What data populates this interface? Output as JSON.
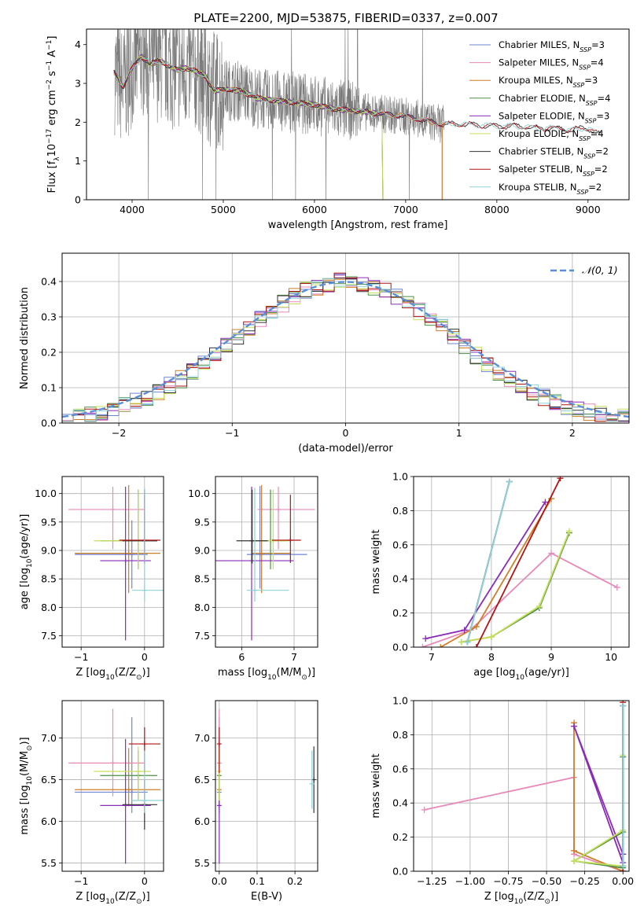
{
  "title": "PLATE=2200, MJD=53875, FIBERID=0337, z=0.007",
  "colors": {
    "Chabrier MILES": "#6f86d6",
    "Salpeter MILES": "#e889b8",
    "Kroupa MILES": "#cf7d26",
    "Chabrier ELODIE": "#4f8f45",
    "Salpeter ELODIE": "#8a2bb8",
    "Kroupa ELODIE": "#c6e05a",
    "Chabrier STELIB": "#333333",
    "Salpeter STELIB": "#b01515",
    "Kroupa STELIB": "#8fd3d8",
    "data": "#7a7a7a",
    "normal": "#5a8fd8"
  },
  "chart_data": [
    {
      "id": "spectrum",
      "type": "line",
      "xlabel": "wavelength [Angstrom, rest frame]",
      "ylabel": "Flux [f_λ10^-17 erg cm^-2 s^-1 A^-1]",
      "xlim": [
        3500,
        9450
      ],
      "ylim": [
        0,
        4.4
      ],
      "xticks": [
        4000,
        5000,
        6000,
        7000,
        8000,
        9000
      ],
      "yticks": [
        0,
        1,
        2,
        3,
        4
      ],
      "legend_position": "top-right",
      "legend": [
        {
          "label": "Chabrier MILES, N",
          "sub": "SSP",
          "suffix": "=3"
        },
        {
          "label": "Salpeter MILES, N",
          "sub": "SSP",
          "suffix": "=4"
        },
        {
          "label": "Kroupa MILES, N",
          "sub": "SSP",
          "suffix": "=3"
        },
        {
          "label": "Chabrier ELODIE, N",
          "sub": "SSP",
          "suffix": "=4"
        },
        {
          "label": "Salpeter ELODIE, N",
          "sub": "SSP",
          "suffix": "=3"
        },
        {
          "label": "Kroupa ELODIE, N",
          "sub": "SSP",
          "suffix": "=4"
        },
        {
          "label": "Chabrier STELIB, N",
          "sub": "SSP",
          "suffix": "=2"
        },
        {
          "label": "Salpeter STELIB, N",
          "sub": "SSP",
          "suffix": "=2"
        },
        {
          "label": "Kroupa STELIB, N",
          "sub": "SSP",
          "suffix": "=2"
        }
      ],
      "model_continuum": {
        "wavelength": [
          3800,
          3900,
          4000,
          4100,
          4200,
          4300,
          4400,
          4500,
          4600,
          4700,
          4800,
          4900,
          5000,
          5200,
          5400,
          5600,
          5800,
          6000,
          6200,
          6400,
          6600,
          6800,
          7000,
          7200,
          7400,
          7600,
          7800,
          8000,
          8200,
          8400,
          8600,
          8800,
          9000,
          9100
        ],
        "flux": [
          3.3,
          2.9,
          3.4,
          3.7,
          3.5,
          3.6,
          3.45,
          3.35,
          3.4,
          3.3,
          3.2,
          2.8,
          2.85,
          2.8,
          2.6,
          2.55,
          2.5,
          2.45,
          2.35,
          2.3,
          2.25,
          2.2,
          2.15,
          2.05,
          1.95,
          1.95,
          1.92,
          1.9,
          1.9,
          1.85,
          1.85,
          1.8,
          1.85,
          1.7
        ]
      }
    },
    {
      "id": "residuals",
      "type": "line",
      "xlabel": "(data-model)/error",
      "ylabel": "Normed distribution",
      "xlim": [
        -2.5,
        2.5
      ],
      "ylim": [
        0,
        0.48
      ],
      "xticks": [
        -2,
        -1,
        0,
        1,
        2
      ],
      "yticks": [
        0.0,
        0.1,
        0.2,
        0.3,
        0.4
      ],
      "legend_position": "top-right",
      "normal_label": "𝒩(0, 1)"
    },
    {
      "id": "age-vs-Z",
      "type": "scatter",
      "xlabel": "Z [log10(Z/Z⊙)]",
      "ylabel": "age  [log10(age/yr)]",
      "xlim": [
        -1.3,
        0.3
      ],
      "ylim": [
        7.3,
        10.3
      ],
      "xticks": [
        -1,
        0
      ],
      "yticks": [
        7.5,
        8.0,
        8.5,
        9.0,
        9.5,
        10.0
      ],
      "points": [
        {
          "model": "Chabrier MILES",
          "x": -0.2,
          "xerr": [
            0.9,
            0.25
          ],
          "y": 8.93,
          "yerr": [
            0.6,
            0.6
          ]
        },
        {
          "model": "Salpeter MILES",
          "x": -0.5,
          "xerr": [
            0.7,
            0.5
          ],
          "y": 9.72,
          "yerr": [
            0.7,
            0.4
          ]
        },
        {
          "model": "Kroupa MILES",
          "x": -0.25,
          "xerr": [
            0.85,
            0.5
          ],
          "y": 8.95,
          "yerr": [
            0.7,
            1.2
          ]
        },
        {
          "model": "Chabrier ELODIE",
          "x": -0.1,
          "xerr": [
            0.6,
            0.3
          ],
          "y": 9.17,
          "yerr": [
            0.5,
            0.9
          ]
        },
        {
          "model": "Salpeter ELODIE",
          "x": -0.3,
          "xerr": [
            0.4,
            0.4
          ],
          "y": 8.82,
          "yerr": [
            1.4,
            1.3
          ]
        },
        {
          "model": "Kroupa ELODIE",
          "x": -0.1,
          "xerr": [
            0.7,
            0.2
          ],
          "y": 9.17,
          "yerr": [
            0.5,
            0.9
          ]
        },
        {
          "model": "Chabrier STELIB",
          "x": 0.0,
          "xerr": [
            0.35,
            0.2
          ],
          "y": 9.17,
          "yerr": [
            0.4,
            0.9
          ]
        },
        {
          "model": "Salpeter STELIB",
          "x": 0.0,
          "xerr": [
            0.4,
            0.25
          ],
          "y": 9.18,
          "yerr": [
            0.4,
            0.8
          ]
        },
        {
          "model": "Kroupa STELIB",
          "x": 0.0,
          "xerr": [
            0.2,
            0.3
          ],
          "y": 8.3,
          "yerr": [
            0.2,
            1.8
          ]
        }
      ]
    },
    {
      "id": "age-vs-mass",
      "type": "scatter",
      "xlabel": "mass [log10(M/M⊙)]",
      "ylabel": "",
      "xlim": [
        5.5,
        7.45
      ],
      "ylim": [
        7.3,
        10.3
      ],
      "xticks": [
        6,
        7
      ],
      "yticks": [
        7.5,
        8.0,
        8.5,
        9.0,
        9.5,
        10.0
      ],
      "points": [
        {
          "model": "Chabrier MILES",
          "x": 6.35,
          "xerr": [
            0.25,
            0.9
          ],
          "y": 8.93,
          "yerr": [
            0.6,
            1.2
          ]
        },
        {
          "model": "Salpeter MILES",
          "x": 6.7,
          "xerr": [
            0.4,
            0.7
          ],
          "y": 9.72,
          "yerr": [
            0.7,
            0.4
          ]
        },
        {
          "model": "Kroupa MILES",
          "x": 6.38,
          "xerr": [
            0.2,
            0.55
          ],
          "y": 8.95,
          "yerr": [
            0.7,
            1.2
          ]
        },
        {
          "model": "Chabrier ELODIE",
          "x": 6.55,
          "xerr": [
            0.3,
            0.3
          ],
          "y": 9.17,
          "yerr": [
            0.5,
            0.9
          ]
        },
        {
          "model": "Salpeter ELODIE",
          "x": 6.19,
          "xerr": [
            0.7,
            0.8
          ],
          "y": 8.82,
          "yerr": [
            1.4,
            1.3
          ]
        },
        {
          "model": "Kroupa ELODIE",
          "x": 6.6,
          "xerr": [
            0.35,
            0.3
          ],
          "y": 9.17,
          "yerr": [
            0.5,
            0.9
          ]
        },
        {
          "model": "Chabrier STELIB",
          "x": 6.2,
          "xerr": [
            0.3,
            0.3
          ],
          "y": 9.17,
          "yerr": [
            0.4,
            0.9
          ]
        },
        {
          "model": "Salpeter STELIB",
          "x": 6.93,
          "xerr": [
            0.35,
            0.2
          ],
          "y": 9.18,
          "yerr": [
            0.4,
            0.8
          ]
        },
        {
          "model": "Kroupa STELIB",
          "x": 6.25,
          "xerr": [
            0.15,
            0.65
          ],
          "y": 8.3,
          "yerr": [
            0.2,
            1.8
          ]
        }
      ]
    },
    {
      "id": "weight-vs-age",
      "type": "line",
      "xlabel": "age  [log10(age/yr)]",
      "ylabel": "mass weight",
      "xlim": [
        6.7,
        10.3
      ],
      "ylim": [
        0,
        1
      ],
      "xticks": [
        7,
        8,
        9,
        10
      ],
      "yticks": [
        0.0,
        0.2,
        0.4,
        0.6,
        0.8,
        1.0
      ],
      "series": [
        {
          "model": "Chabrier MILES",
          "x": [
            7.6,
            7.65,
            8.3
          ],
          "y": [
            0.03,
            0.1,
            0.97
          ]
        },
        {
          "model": "Salpeter MILES",
          "x": [
            6.85,
            7.65,
            9.0,
            10.1
          ],
          "y": [
            0.0,
            0.1,
            0.55,
            0.35
          ]
        },
        {
          "model": "Kroupa MILES",
          "x": [
            7.15,
            7.75,
            9.0
          ],
          "y": [
            0.0,
            0.12,
            0.87
          ]
        },
        {
          "model": "Chabrier ELODIE",
          "x": [
            7.5,
            8.0,
            8.8,
            9.3
          ],
          "y": [
            0.03,
            0.06,
            0.23,
            0.67
          ]
        },
        {
          "model": "Salpeter ELODIE",
          "x": [
            6.9,
            7.55,
            8.9
          ],
          "y": [
            0.05,
            0.1,
            0.85
          ]
        },
        {
          "model": "Kroupa ELODIE",
          "x": [
            7.5,
            8.0,
            8.8,
            9.3
          ],
          "y": [
            0.03,
            0.06,
            0.24,
            0.68
          ]
        },
        {
          "model": "Chabrier STELIB",
          "x": [
            7.6,
            8.3
          ],
          "y": [
            0.03,
            0.97
          ]
        },
        {
          "model": "Salpeter STELIB",
          "x": [
            7.75,
            9.15
          ],
          "y": [
            0.0,
            0.99
          ]
        },
        {
          "model": "Kroupa STELIB",
          "x": [
            7.6,
            8.3
          ],
          "y": [
            0.03,
            0.97
          ]
        }
      ]
    },
    {
      "id": "mass-vs-Z",
      "type": "scatter",
      "xlabel": "Z [log10(Z/Z⊙)]",
      "ylabel": "mass [log10(M/M⊙)]",
      "xlim": [
        -1.3,
        0.3
      ],
      "ylim": [
        5.4,
        7.45
      ],
      "xticks": [
        -1,
        0
      ],
      "yticks": [
        5.5,
        6.0,
        6.5,
        7.0
      ],
      "points": [
        {
          "model": "Chabrier MILES",
          "x": -0.2,
          "xerr": [
            0.9,
            0.25
          ],
          "y": 6.35,
          "yerr": [
            0.25,
            0.9
          ]
        },
        {
          "model": "Salpeter MILES",
          "x": -0.5,
          "xerr": [
            0.7,
            0.5
          ],
          "y": 6.7,
          "yerr": [
            0.4,
            0.65
          ]
        },
        {
          "model": "Kroupa MILES",
          "x": -0.25,
          "xerr": [
            0.85,
            0.5
          ],
          "y": 6.38,
          "yerr": [
            0.2,
            0.5
          ]
        },
        {
          "model": "Chabrier ELODIE",
          "x": -0.1,
          "xerr": [
            0.6,
            0.3
          ],
          "y": 6.55,
          "yerr": [
            0.3,
            0.3
          ]
        },
        {
          "model": "Salpeter ELODIE",
          "x": -0.3,
          "xerr": [
            0.4,
            0.4
          ],
          "y": 6.19,
          "yerr": [
            0.7,
            0.8
          ]
        },
        {
          "model": "Kroupa ELODIE",
          "x": -0.1,
          "xerr": [
            0.7,
            0.2
          ],
          "y": 6.6,
          "yerr": [
            0.35,
            0.3
          ]
        },
        {
          "model": "Chabrier STELIB",
          "x": 0.0,
          "xerr": [
            0.35,
            0.2
          ],
          "y": 6.2,
          "yerr": [
            0.3,
            0.3
          ]
        },
        {
          "model": "Salpeter STELIB",
          "x": 0.0,
          "xerr": [
            0.25,
            0.25
          ],
          "y": 6.93,
          "yerr": [
            0.35,
            0.2
          ]
        },
        {
          "model": "Kroupa STELIB",
          "x": 0.0,
          "xerr": [
            0.2,
            0.3
          ],
          "y": 6.25,
          "yerr": [
            0.15,
            0.6
          ]
        }
      ]
    },
    {
      "id": "mass-vs-ebv",
      "type": "scatter",
      "xlabel": "E(B-V)",
      "ylabel": "",
      "xlim": [
        -0.01,
        0.26
      ],
      "ylim": [
        5.4,
        7.45
      ],
      "xticks": [
        0.0,
        0.1,
        0.2
      ],
      "yticks": [
        5.5,
        6.0,
        6.5,
        7.0
      ],
      "points": [
        {
          "model": "Chabrier MILES",
          "x": 0.0,
          "y": 6.35,
          "yerr": [
            0.25,
            0.9
          ]
        },
        {
          "model": "Salpeter MILES",
          "x": 0.0,
          "y": 6.7,
          "yerr": [
            0.4,
            0.65
          ]
        },
        {
          "model": "Kroupa MILES",
          "x": 0.0,
          "y": 6.38,
          "yerr": [
            0.2,
            0.5
          ]
        },
        {
          "model": "Chabrier ELODIE",
          "x": 0.0,
          "y": 6.55,
          "yerr": [
            0.3,
            0.3
          ]
        },
        {
          "model": "Salpeter ELODIE",
          "x": 0.0,
          "y": 6.19,
          "yerr": [
            0.7,
            0.8
          ]
        },
        {
          "model": "Kroupa ELODIE",
          "x": 0.0,
          "y": 6.6,
          "yerr": [
            0.35,
            0.3
          ]
        },
        {
          "model": "Chabrier STELIB",
          "x": 0.25,
          "y": 6.5,
          "yerr": [
            0.4,
            0.4
          ]
        },
        {
          "model": "Salpeter STELIB",
          "x": 0.0,
          "y": 6.93,
          "yerr": [
            0.35,
            0.2
          ]
        },
        {
          "model": "Kroupa STELIB",
          "x": 0.245,
          "y": 6.45,
          "yerr": [
            0.3,
            0.4
          ]
        }
      ]
    },
    {
      "id": "weight-vs-Z",
      "type": "line",
      "xlabel": "Z [log10(Z/Z⊙)]",
      "ylabel": "mass weight",
      "xlim": [
        -1.37,
        0.04
      ],
      "ylim": [
        0,
        1
      ],
      "xticks": [
        -1.25,
        -1.0,
        -0.75,
        -0.5,
        -0.25,
        0.0
      ],
      "yticks": [
        0.0,
        0.2,
        0.4,
        0.6,
        0.8,
        1.0
      ],
      "series": [
        {
          "model": "Chabrier MILES",
          "x": [
            0.0,
            0.0,
            0.0
          ],
          "y": [
            0.03,
            0.1,
            0.97
          ]
        },
        {
          "model": "Salpeter MILES",
          "x": [
            0.0,
            -0.32,
            -0.32,
            -1.3
          ],
          "y": [
            0.0,
            0.1,
            0.55,
            0.36
          ]
        },
        {
          "model": "Kroupa MILES",
          "x": [
            0.0,
            -0.32,
            -0.32
          ],
          "y": [
            0.0,
            0.12,
            0.87
          ]
        },
        {
          "model": "Chabrier ELODIE",
          "x": [
            0.0,
            -0.32,
            0.0,
            0.0
          ],
          "y": [
            0.02,
            0.06,
            0.23,
            0.67
          ]
        },
        {
          "model": "Salpeter ELODIE",
          "x": [
            0.0,
            -0.32,
            0.0
          ],
          "y": [
            0.05,
            0.85,
            0.1
          ]
        },
        {
          "model": "Kroupa ELODIE",
          "x": [
            0.0,
            -0.32,
            0.0,
            0.0
          ],
          "y": [
            0.03,
            0.06,
            0.24,
            0.68
          ]
        },
        {
          "model": "Chabrier STELIB",
          "x": [
            0.0,
            0.0
          ],
          "y": [
            0.03,
            0.97
          ]
        },
        {
          "model": "Salpeter STELIB",
          "x": [
            0.0,
            0.0
          ],
          "y": [
            0.0,
            0.99
          ]
        },
        {
          "model": "Kroupa STELIB",
          "x": [
            0.0,
            0.0
          ],
          "y": [
            0.03,
            0.97
          ]
        }
      ]
    }
  ]
}
